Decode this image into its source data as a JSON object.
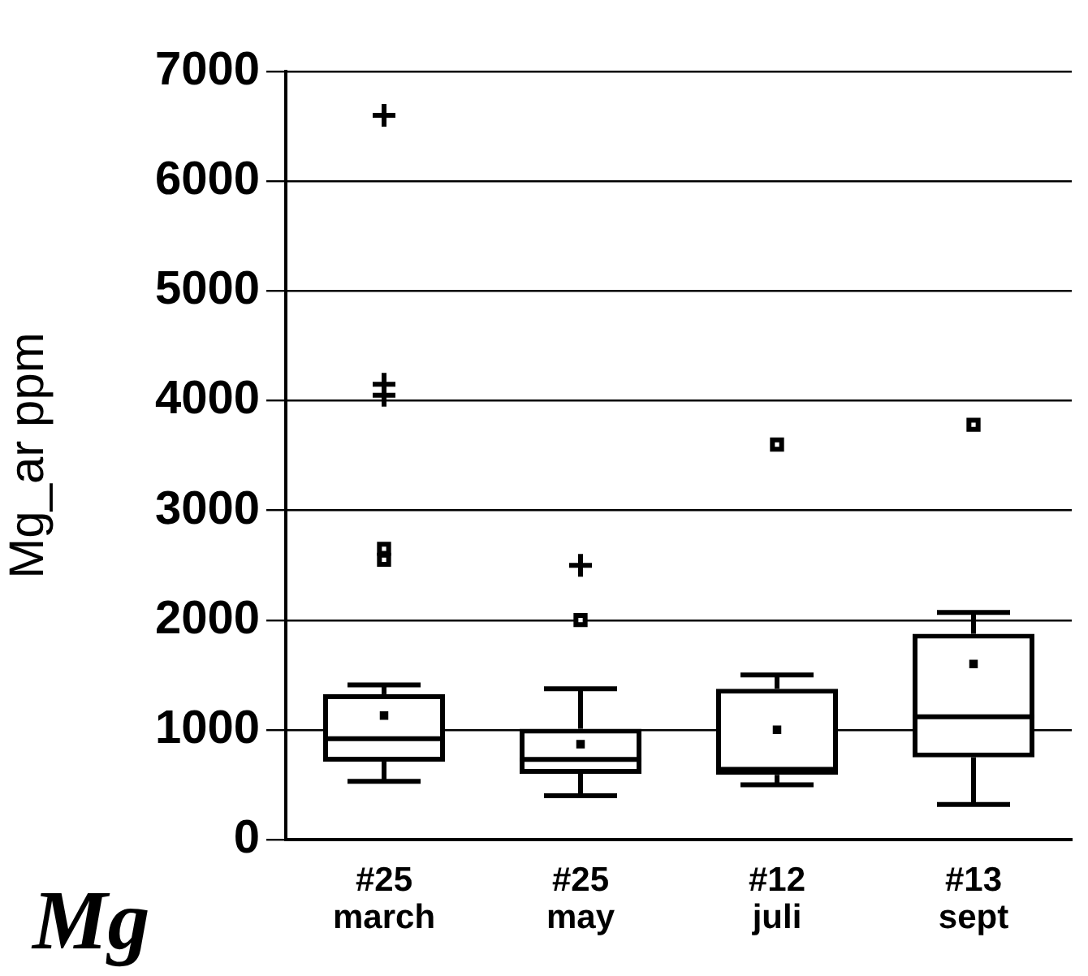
{
  "chart_data": {
    "type": "box",
    "ylabel": "Mg_ar ppm",
    "categories": [
      "#25 march",
      "#25 may",
      "#12 juli",
      "#13 sept"
    ],
    "boxes": [
      {
        "low": 530,
        "q1": 710,
        "median": 920,
        "q3": 1325,
        "high": 1410,
        "mean": 1130,
        "outliers": [
          2550,
          2650,
          4050,
          4150,
          6600
        ]
      },
      {
        "low": 400,
        "q1": 600,
        "median": 730,
        "q3": 1010,
        "high": 1375,
        "mean": 870,
        "outliers": [
          2000,
          2500
        ]
      },
      {
        "low": 500,
        "q1": 590,
        "median": 640,
        "q3": 1375,
        "high": 1500,
        "mean": 1000,
        "outliers": [
          3600
        ]
      },
      {
        "low": 320,
        "q1": 750,
        "median": 1120,
        "q3": 1875,
        "high": 2070,
        "mean": 1600,
        "outliers": [
          3780
        ]
      }
    ],
    "color": "#000000",
    "ylim": [
      0,
      7000
    ],
    "yticks": [
      0,
      1000,
      2000,
      3000,
      4000,
      5000,
      6000,
      7000
    ],
    "grid": "y",
    "legend": false,
    "annotations": [
      "Mg"
    ]
  }
}
